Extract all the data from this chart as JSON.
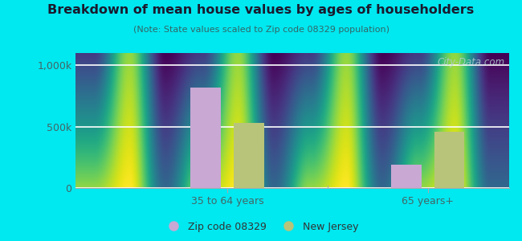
{
  "title": "Breakdown of mean house values by ages of householders",
  "subtitle": "(Note: State values scaled to Zip code 08329 population)",
  "categories": [
    "35 to 64 years",
    "65 years+"
  ],
  "zip_values": [
    820000,
    190000
  ],
  "nj_values": [
    530000,
    460000
  ],
  "zip_color": "#c9a8d4",
  "nj_color": "#b8c47a",
  "ylim": [
    0,
    1100000
  ],
  "yticks": [
    0,
    500000,
    1000000
  ],
  "ytick_labels": [
    "0",
    "500k",
    "1,000k"
  ],
  "background_outer": "#00e8f0",
  "legend_zip_label": "Zip code 08329",
  "legend_nj_label": "New Jersey",
  "bar_width": 0.28,
  "watermark": "City-Data.com"
}
